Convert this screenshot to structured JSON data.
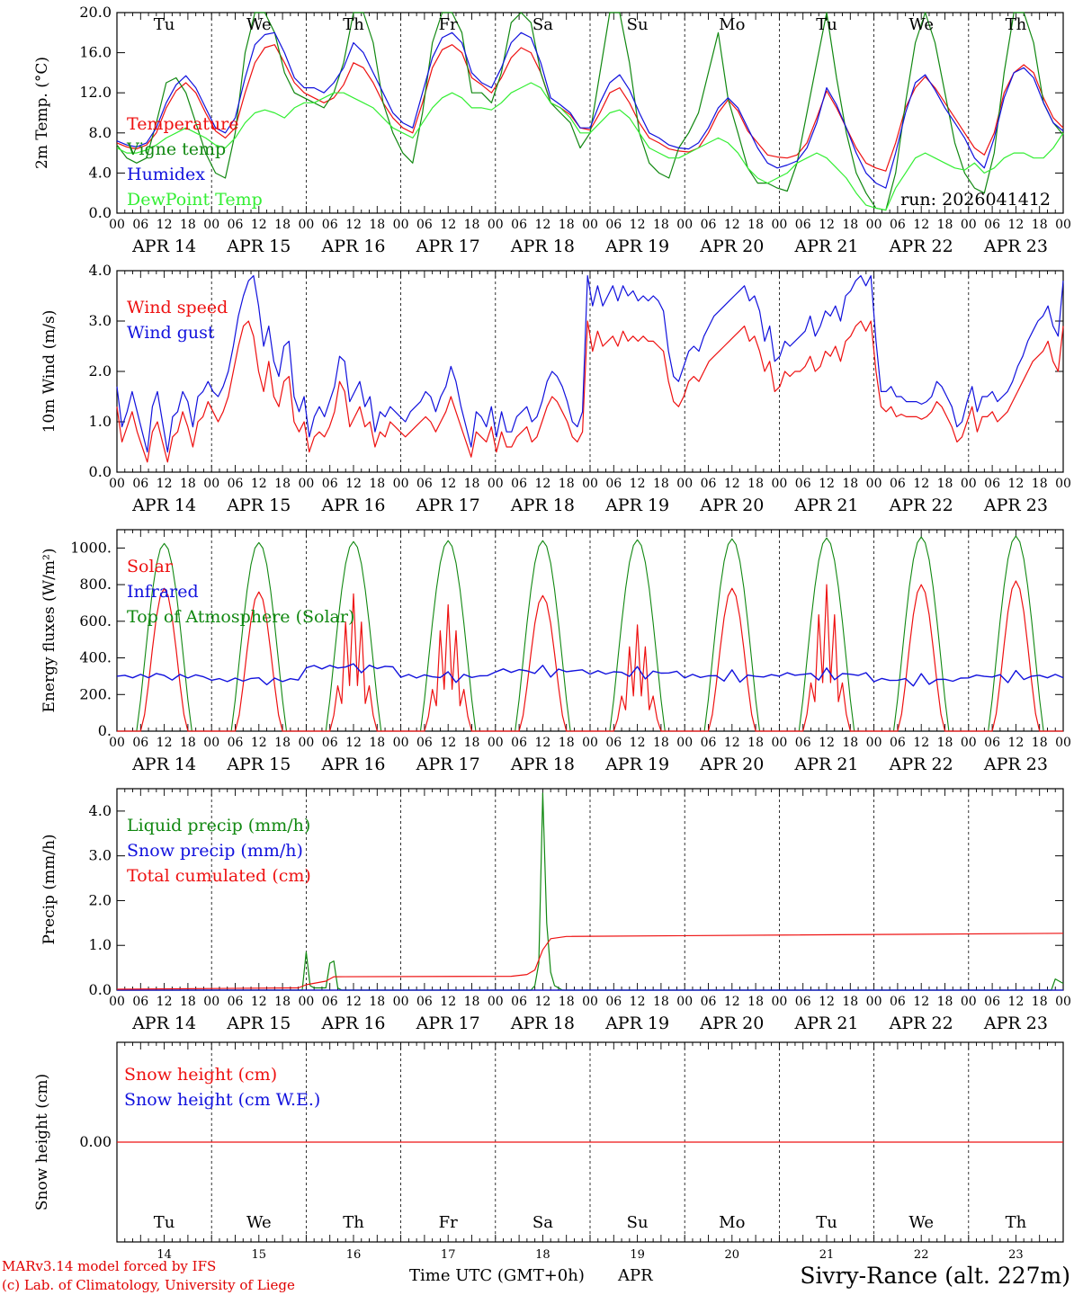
{
  "colors": {
    "red": "#ee1111",
    "green": "#118811",
    "blue": "#1111dd",
    "lightgreen": "#33ee33",
    "weekend": "#ee2222"
  },
  "days": [
    "Tu",
    "We",
    "Th",
    "Fr",
    "Sa",
    "Su",
    "Mo",
    "Tu",
    "We",
    "Th"
  ],
  "weekend_days": [
    4,
    5
  ],
  "dates": [
    "APR 14",
    "APR 15",
    "APR 16",
    "APR 17",
    "APR 18",
    "APR 19",
    "APR 20",
    "APR 21",
    "APR 22",
    "APR 23"
  ],
  "date_numbers": [
    "14",
    "15",
    "16",
    "17",
    "18",
    "19",
    "20",
    "21",
    "22",
    "23"
  ],
  "hour_ticks": [
    "00",
    "06",
    "12",
    "18"
  ],
  "x_axis_label": "Time UTC (GMT+0h)",
  "x_axis_month": "APR",
  "run_label": "run: 2026041412",
  "footer": {
    "line1": "MARv3.14 model forced by IFS",
    "line2": "(c) Lab. of Climatology, University of Liege",
    "station": "Sivry-Rance (alt. 227m)"
  },
  "chart_data": [
    {
      "id": "temp",
      "type": "line",
      "ylabel": "2m Temp. (°C)",
      "ylim": [
        0,
        20
      ],
      "yticks": [
        "0.0",
        "4.0",
        "8.0",
        "12.0",
        "16.0",
        "20.0"
      ],
      "x_hours_step": 3,
      "legend": [
        "Temperature",
        "Vigne temp",
        "Humidex",
        "DewPoint Temp"
      ],
      "series": [
        {
          "name": "Temperature",
          "color": "red",
          "values": [
            7,
            6.6,
            6.4,
            6.8,
            8,
            10.5,
            12.2,
            13,
            12,
            10,
            8.2,
            7.5,
            8.5,
            12,
            15,
            16.5,
            16.8,
            15,
            13,
            12,
            11.5,
            11,
            11.5,
            12.8,
            15,
            14.5,
            13,
            11,
            9.5,
            8.5,
            8,
            11,
            14.5,
            16.3,
            16.8,
            16,
            13.5,
            12.8,
            12,
            13.5,
            15.5,
            16.5,
            16,
            14,
            11,
            10.5,
            9.8,
            8.5,
            8.3,
            10,
            12,
            12.5,
            11,
            9,
            7.5,
            7,
            6.4,
            6.2,
            6.1,
            6.5,
            8,
            10,
            11.3,
            10.2,
            8.2,
            7,
            5.8,
            5.6,
            5.5,
            5.8,
            7,
            9.5,
            12.2,
            10.5,
            8.5,
            6.5,
            5,
            4.5,
            4.2,
            7,
            10.5,
            12.5,
            13.6,
            12.5,
            11,
            9.5,
            8,
            6.5,
            5.8,
            8,
            12,
            14,
            14.8,
            14,
            11.5,
            9.5,
            8.5
          ]
        },
        {
          "name": "Vigne temp",
          "color": "green",
          "values": [
            6.8,
            5.5,
            5,
            5.5,
            9,
            13,
            13.5,
            12,
            9,
            6,
            4,
            3.5,
            8,
            16,
            20,
            20,
            18,
            14,
            12,
            11.5,
            11,
            10.5,
            12,
            15,
            20,
            20,
            17,
            11,
            8,
            6,
            5,
            10,
            17,
            20,
            20,
            18,
            12,
            12,
            11,
            14,
            19,
            20,
            19,
            14,
            11,
            10,
            9,
            6.5,
            8,
            14,
            20,
            20,
            15,
            8,
            5,
            4,
            3.5,
            6.5,
            8,
            10,
            14,
            18,
            11.4,
            8,
            4.5,
            3,
            3,
            2.5,
            2.2,
            5,
            10,
            15,
            20,
            13.5,
            8,
            4,
            2,
            0.5,
            0.3,
            4,
            11,
            17,
            20,
            17,
            12,
            7,
            4,
            2.5,
            2,
            6,
            14,
            20,
            20,
            17,
            11,
            9,
            7.8
          ]
        },
        {
          "name": "Humidex",
          "color": "blue",
          "values": [
            7.2,
            6.8,
            6.6,
            7,
            8.5,
            11,
            12.8,
            13.7,
            12.5,
            10.5,
            8.5,
            8,
            9.5,
            13.5,
            16.8,
            17.8,
            18,
            16,
            13.5,
            12.5,
            12.5,
            12,
            13,
            14.5,
            17,
            16,
            14,
            12,
            10,
            9,
            8.5,
            12,
            15.5,
            17.5,
            18,
            17,
            14,
            13,
            12.5,
            14.5,
            17,
            18,
            17.5,
            15,
            11.5,
            10.8,
            10,
            8.5,
            8.5,
            11,
            13,
            13.8,
            12.3,
            10,
            8,
            7.5,
            6.8,
            6.5,
            6.4,
            7,
            8.5,
            10.5,
            11.5,
            10.5,
            8.5,
            6.5,
            5,
            4.5,
            4.8,
            5.2,
            6.5,
            9,
            12.5,
            10.8,
            8.5,
            6,
            4,
            3,
            2.5,
            6,
            10,
            13,
            13.8,
            12.3,
            10.5,
            9,
            7.5,
            5.5,
            4.5,
            7.5,
            11.5,
            14,
            14.5,
            13.5,
            11,
            9,
            8.2
          ]
        },
        {
          "name": "DewPoint Temp",
          "color": "lightgreen",
          "values": [
            6.5,
            6,
            6,
            6.3,
            6.8,
            7.5,
            8,
            8.5,
            8,
            7.5,
            6.8,
            6.5,
            7.5,
            9,
            10,
            10.3,
            10,
            9.5,
            10.5,
            11,
            11,
            11.5,
            12,
            12,
            11.5,
            11,
            10.5,
            9.5,
            8.5,
            8,
            7.5,
            9,
            10.5,
            11.5,
            12,
            11.5,
            10.5,
            10.5,
            10.3,
            11,
            12,
            12.5,
            13,
            12.5,
            11,
            10.5,
            9.5,
            8,
            8,
            9,
            10,
            10.3,
            9.5,
            8,
            6.5,
            6,
            5.5,
            5.5,
            6,
            6.5,
            7,
            7.5,
            7,
            6,
            4.5,
            3.5,
            3,
            3.5,
            4,
            5,
            5.5,
            6,
            5.5,
            4.5,
            3.5,
            2,
            0.8,
            0.5,
            0.3,
            2.5,
            4,
            5.5,
            6,
            5.5,
            5,
            4.5,
            4.3,
            5,
            4,
            4.5,
            5.5,
            6,
            6,
            5.5,
            5.5,
            6.5,
            8
          ]
        }
      ]
    },
    {
      "id": "wind",
      "type": "line",
      "ylabel": "10m Wind (m/s)",
      "ylim": [
        0,
        4
      ],
      "yticks": [
        "0.0",
        "1.0",
        "2.0",
        "3.0",
        "4.0"
      ],
      "x_hours_step": 2,
      "legend": [
        "Wind speed",
        "Wind gust"
      ],
      "series": [
        {
          "name": "Wind speed",
          "color": "red",
          "values": [
            1.3,
            0.6,
            0.9,
            1.2,
            0.8,
            0.5,
            0.2,
            0.8,
            1.0,
            0.6,
            0.2,
            0.7,
            0.8,
            1.2,
            0.9,
            0.5,
            1.0,
            1.1,
            1.4,
            1.2,
            1.0,
            1.2,
            1.5,
            2.0,
            2.5,
            2.9,
            3.0,
            2.7,
            2.0,
            1.6,
            2.2,
            1.5,
            1.3,
            1.8,
            1.9,
            1.0,
            0.8,
            1.0,
            0.4,
            0.7,
            0.8,
            0.7,
            0.9,
            1.2,
            1.8,
            1.6,
            0.9,
            1.1,
            1.3,
            0.9,
            1.0,
            0.5,
            0.8,
            0.7,
            1.0,
            0.9,
            0.8,
            0.7,
            0.8,
            0.9,
            1.0,
            1.1,
            1.0,
            0.8,
            1.0,
            1.2,
            1.5,
            1.2,
            0.9,
            0.6,
            0.3,
            0.8,
            0.7,
            0.6,
            0.9,
            0.4,
            0.8,
            0.5,
            0.5,
            0.7,
            0.8,
            0.9,
            0.6,
            0.7,
            1.0,
            1.3,
            1.5,
            1.4,
            1.2,
            1.0,
            0.7,
            0.6,
            0.8,
            3.0,
            2.4,
            2.8,
            2.5,
            2.6,
            2.7,
            2.5,
            2.8,
            2.6,
            2.7,
            2.6,
            2.7,
            2.6,
            2.6,
            2.5,
            2.4,
            1.8,
            1.4,
            1.3,
            1.5,
            1.8,
            1.9,
            1.8,
            2.0,
            2.2,
            2.3,
            2.4,
            2.5,
            2.6,
            2.7,
            2.8,
            2.9,
            2.6,
            2.7,
            2.4,
            2.0,
            2.2,
            1.6,
            1.7,
            2.0,
            1.9,
            2.0,
            2.0,
            2.1,
            2.3,
            2.0,
            2.1,
            2.4,
            2.3,
            2.5,
            2.2,
            2.6,
            2.7,
            2.9,
            3.0,
            2.8,
            3.0,
            2.0,
            1.3,
            1.2,
            1.3,
            1.1,
            1.15,
            1.1,
            1.1,
            1.1,
            1.05,
            1.1,
            1.2,
            1.4,
            1.3,
            1.1,
            0.9,
            0.6,
            0.7,
            1.0,
            1.3,
            0.8,
            1.1,
            1.1,
            1.2,
            1.0,
            1.1,
            1.2,
            1.4,
            1.6,
            1.8,
            2.0,
            2.2,
            2.3,
            2.4,
            2.6,
            2.2,
            2.0,
            2.9
          ]
        },
        {
          "name": "Wind gust",
          "color": "blue",
          "values": [
            1.7,
            0.9,
            1.2,
            1.6,
            1.2,
            0.8,
            0.4,
            1.3,
            1.6,
            1.0,
            0.4,
            1.1,
            1.2,
            1.6,
            1.4,
            0.9,
            1.5,
            1.6,
            1.8,
            1.6,
            1.5,
            1.7,
            2.0,
            2.5,
            3.1,
            3.5,
            3.8,
            3.9,
            3.3,
            2.5,
            2.9,
            2.2,
            1.9,
            2.5,
            2.6,
            1.5,
            1.2,
            1.5,
            0.7,
            1.1,
            1.3,
            1.1,
            1.4,
            1.7,
            2.3,
            2.2,
            1.4,
            1.6,
            1.8,
            1.3,
            1.5,
            0.8,
            1.2,
            1.1,
            1.3,
            1.2,
            1.1,
            1.0,
            1.2,
            1.3,
            1.4,
            1.6,
            1.5,
            1.2,
            1.5,
            1.7,
            2.1,
            1.8,
            1.3,
            0.9,
            0.5,
            1.2,
            1.1,
            0.9,
            1.3,
            0.7,
            1.2,
            0.8,
            0.8,
            1.1,
            1.2,
            1.3,
            1.0,
            1.1,
            1.4,
            1.8,
            2.0,
            1.9,
            1.7,
            1.4,
            1.0,
            0.9,
            1.2,
            3.9,
            3.3,
            3.7,
            3.3,
            3.5,
            3.7,
            3.4,
            3.7,
            3.5,
            3.6,
            3.4,
            3.5,
            3.4,
            3.5,
            3.4,
            3.2,
            2.4,
            1.9,
            1.8,
            2.1,
            2.4,
            2.5,
            2.4,
            2.7,
            2.9,
            3.1,
            3.2,
            3.3,
            3.4,
            3.5,
            3.6,
            3.7,
            3.4,
            3.5,
            3.2,
            2.6,
            2.9,
            2.2,
            2.3,
            2.6,
            2.5,
            2.6,
            2.7,
            2.8,
            3.1,
            2.7,
            2.9,
            3.2,
            3.1,
            3.3,
            3.0,
            3.5,
            3.6,
            3.8,
            3.9,
            3.7,
            3.9,
            2.6,
            1.6,
            1.6,
            1.7,
            1.5,
            1.5,
            1.4,
            1.4,
            1.4,
            1.35,
            1.4,
            1.5,
            1.8,
            1.7,
            1.5,
            1.3,
            0.9,
            1.0,
            1.4,
            1.7,
            1.2,
            1.5,
            1.5,
            1.6,
            1.4,
            1.5,
            1.6,
            1.8,
            2.1,
            2.3,
            2.6,
            2.8,
            3.0,
            3.1,
            3.3,
            2.9,
            2.7,
            3.8
          ]
        }
      ]
    },
    {
      "id": "flux",
      "type": "line",
      "ylabel": "Energy fluxes (W/m²)",
      "ylim": [
        0,
        1100
      ],
      "yticks": [
        "0.",
        "200.",
        "400.",
        "600.",
        "800.",
        "1000."
      ],
      "x_hours_step": 2,
      "legend": [
        "Solar",
        "Infrared",
        "Top of Atmosphere (Solar)"
      ],
      "solar_peak": [
        780,
        760,
        750,
        690,
        740,
        580,
        780,
        800,
        800,
        820
      ],
      "toa_peak": [
        1025,
        1030,
        1035,
        1040,
        1040,
        1045,
        1050,
        1055,
        1060,
        1065
      ],
      "infrared_level": [
        300,
        280,
        350,
        300,
        330,
        320,
        300,
        310,
        280,
        300
      ],
      "series": [
        {
          "name": "Solar",
          "color": "red"
        },
        {
          "name": "Infrared",
          "color": "blue"
        },
        {
          "name": "Top of Atmosphere (Solar)",
          "color": "green"
        }
      ]
    },
    {
      "id": "precip",
      "type": "line",
      "ylabel": "Precip (mm/h)",
      "ylim": [
        0,
        4.5
      ],
      "yticks": [
        "0.0",
        "1.0",
        "2.0",
        "3.0",
        "4.0"
      ],
      "legend": [
        "Liquid precip (mm/h)",
        "Snow precip (mm/h)",
        "Total cumulated (cm)"
      ],
      "series": [
        {
          "name": "Liquid precip (mm/h)",
          "color": "green",
          "points": [
            [
              0,
              0
            ],
            [
              47,
              0
            ],
            [
              48,
              0.85
            ],
            [
              49,
              0.1
            ],
            [
              50,
              0.05
            ],
            [
              53,
              0.05
            ],
            [
              54,
              0.6
            ],
            [
              55,
              0.65
            ],
            [
              56,
              0.05
            ],
            [
              57,
              0
            ],
            [
              105,
              0
            ],
            [
              106,
              0.1
            ],
            [
              107,
              0.6
            ],
            [
              108,
              4.4
            ],
            [
              109,
              1.5
            ],
            [
              110,
              0.4
            ],
            [
              111,
              0.1
            ],
            [
              113,
              0
            ],
            [
              237,
              0
            ],
            [
              238,
              0.25
            ],
            [
              240,
              0.15
            ]
          ]
        },
        {
          "name": "Snow precip (mm/h)",
          "color": "blue",
          "points": [
            [
              0,
              0
            ],
            [
              240,
              0
            ]
          ]
        },
        {
          "name": "Total cumulated (cm)",
          "color": "red",
          "points": [
            [
              0,
              0.02
            ],
            [
              46,
              0.05
            ],
            [
              48,
              0.12
            ],
            [
              53,
              0.2
            ],
            [
              55,
              0.3
            ],
            [
              100,
              0.31
            ],
            [
              104,
              0.35
            ],
            [
              106,
              0.45
            ],
            [
              108,
              0.9
            ],
            [
              110,
              1.15
            ],
            [
              114,
              1.2
            ],
            [
              240,
              1.27
            ]
          ]
        }
      ]
    },
    {
      "id": "snow",
      "type": "line",
      "ylabel": "Snow height (cm)",
      "yticks": [
        "0.00"
      ],
      "legend": [
        "Snow height (cm)",
        "Snow height (cm W.E.)"
      ],
      "series": [
        {
          "name": "Snow height (cm)",
          "color": "red",
          "values": [
            0,
            0
          ]
        },
        {
          "name": "Snow height (cm W.E.)",
          "color": "blue",
          "values": [
            0,
            0
          ]
        }
      ]
    }
  ]
}
